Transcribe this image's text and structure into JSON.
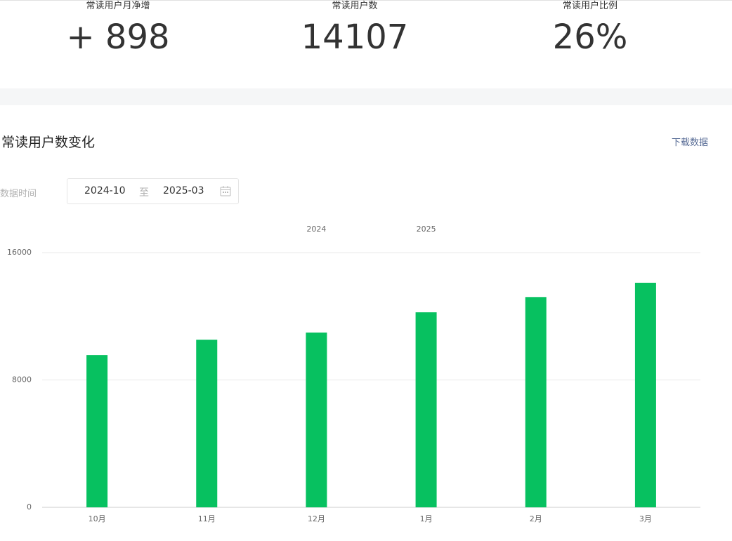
{
  "kpis": [
    {
      "label": "常读用户月净增",
      "value": "+ 898"
    },
    {
      "label": "常读用户数",
      "value": "14107"
    },
    {
      "label": "常读用户比例",
      "value": "26%"
    }
  ],
  "section": {
    "title": "常读用户数变化",
    "download": "下载数据"
  },
  "filter": {
    "label": "数据时间",
    "start": "2024-10",
    "separator": "至",
    "end": "2025-03"
  },
  "chart_data": {
    "type": "bar",
    "categories": [
      "10月",
      "11月",
      "12月",
      "1月",
      "2月",
      "3月"
    ],
    "values": [
      9560,
      10530,
      10980,
      12250,
      13210,
      14107
    ],
    "color": "#07c160",
    "ylim": [
      0,
      16000
    ],
    "yticks": [
      0,
      8000,
      16000
    ],
    "grid": true,
    "annotations": [
      {
        "text": "2024",
        "at": "12月"
      },
      {
        "text": "2025",
        "at": "1月"
      }
    ]
  }
}
